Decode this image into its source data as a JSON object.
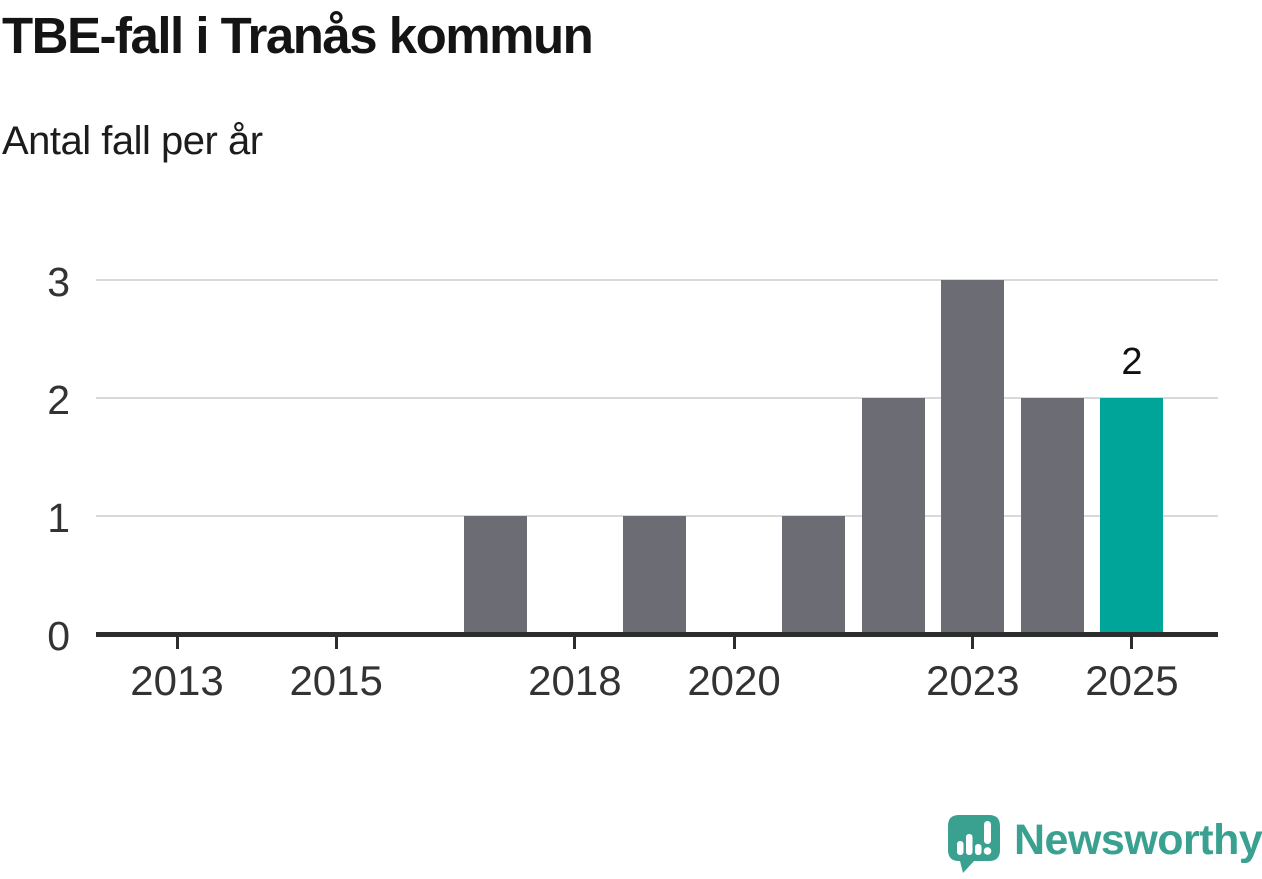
{
  "chart_data": {
    "type": "bar",
    "title": "TBE-fall i Tranås kommun",
    "subtitle": "Antal fall per år",
    "xlabel": "",
    "ylabel": "Antal fall per år",
    "x": [
      2012,
      2013,
      2014,
      2015,
      2016,
      2017,
      2018,
      2019,
      2020,
      2021,
      2022,
      2023,
      2024,
      2025
    ],
    "values": [
      0,
      0,
      0,
      0,
      0,
      1,
      0,
      1,
      0,
      1,
      2,
      3,
      2,
      2
    ],
    "highlight": {
      "year": 2025,
      "value": 2,
      "data_label": "2"
    },
    "xtick_labels": [
      "2013",
      "2015",
      "2018",
      "2020",
      "2023",
      "2025"
    ],
    "ytick_labels": [
      "0",
      "1",
      "2",
      "3"
    ],
    "ylim": [
      0,
      3
    ],
    "xlim": [
      2012,
      2025
    ],
    "grid": "horizontal",
    "legend": "none",
    "colors": {
      "bar": "#6c6c74",
      "highlight_bar": "#00a59a",
      "gridline": "#d9d9d9",
      "axis": "#2d2d2d",
      "tick_label": "#333333",
      "data_label": "#111111",
      "title": "#141414",
      "subtitle": "#1c1c1c"
    }
  },
  "branding": {
    "logo_text": "Newsworthy",
    "logo_color": "#3aa191",
    "logo_icon": "speech-bubble-bar-chart-exclamation"
  }
}
